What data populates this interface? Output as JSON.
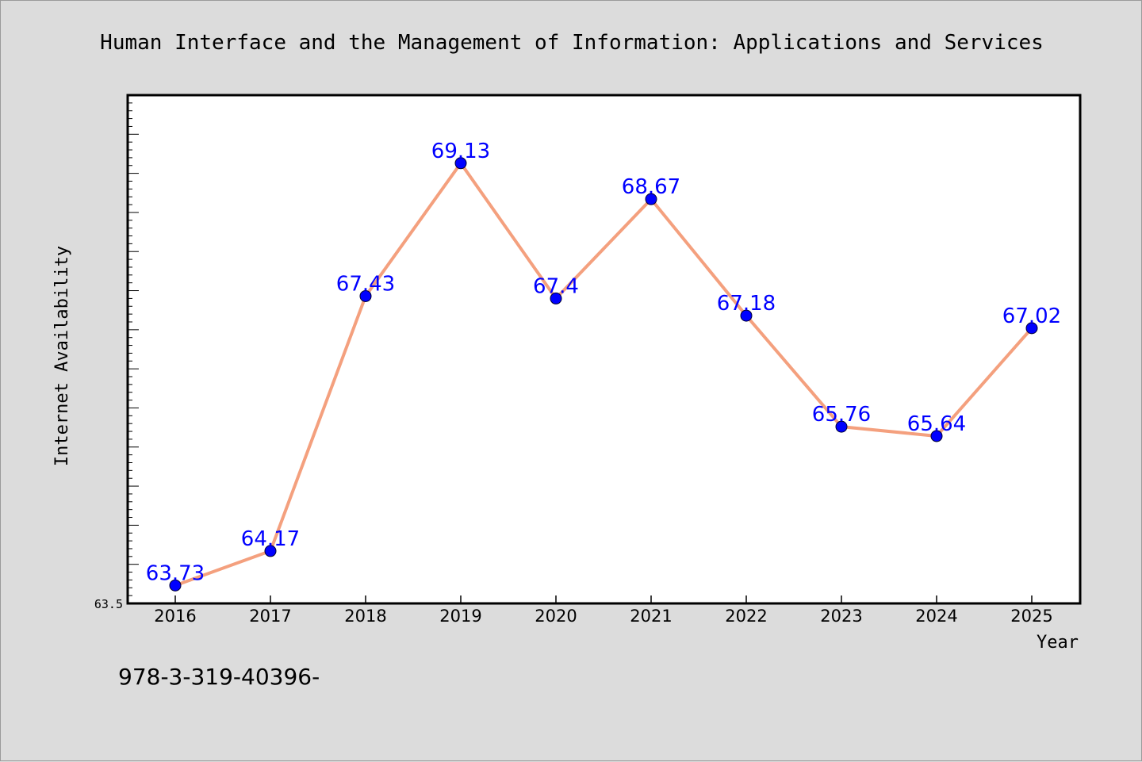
{
  "chart_data": {
    "type": "line",
    "title": "Human Interface and the Management of Information: Applications and Services",
    "xlabel": "Year",
    "ylabel": "Internet Availability",
    "x": [
      "2016",
      "2017",
      "2018",
      "2019",
      "2020",
      "2021",
      "2022",
      "2023",
      "2024",
      "2025"
    ],
    "series": [
      {
        "values": [
          63.73,
          64.17,
          67.43,
          69.13,
          67.4,
          68.67,
          67.18,
          65.76,
          65.64,
          67.02
        ],
        "labels": [
          "63.73",
          "64.17",
          "67.43",
          "69.13",
          "67.4",
          "68.67",
          "67.18",
          "65.76",
          "65.64",
          "67.02"
        ]
      }
    ],
    "ylim": [
      63.5,
      70.0
    ],
    "ytick_labels": [
      "63.5"
    ],
    "grid": false,
    "line_color": "#f4a07e",
    "marker_color": "#0000ff",
    "label_color": "#0000ff"
  },
  "footer_text": "978-3-319-40396-"
}
